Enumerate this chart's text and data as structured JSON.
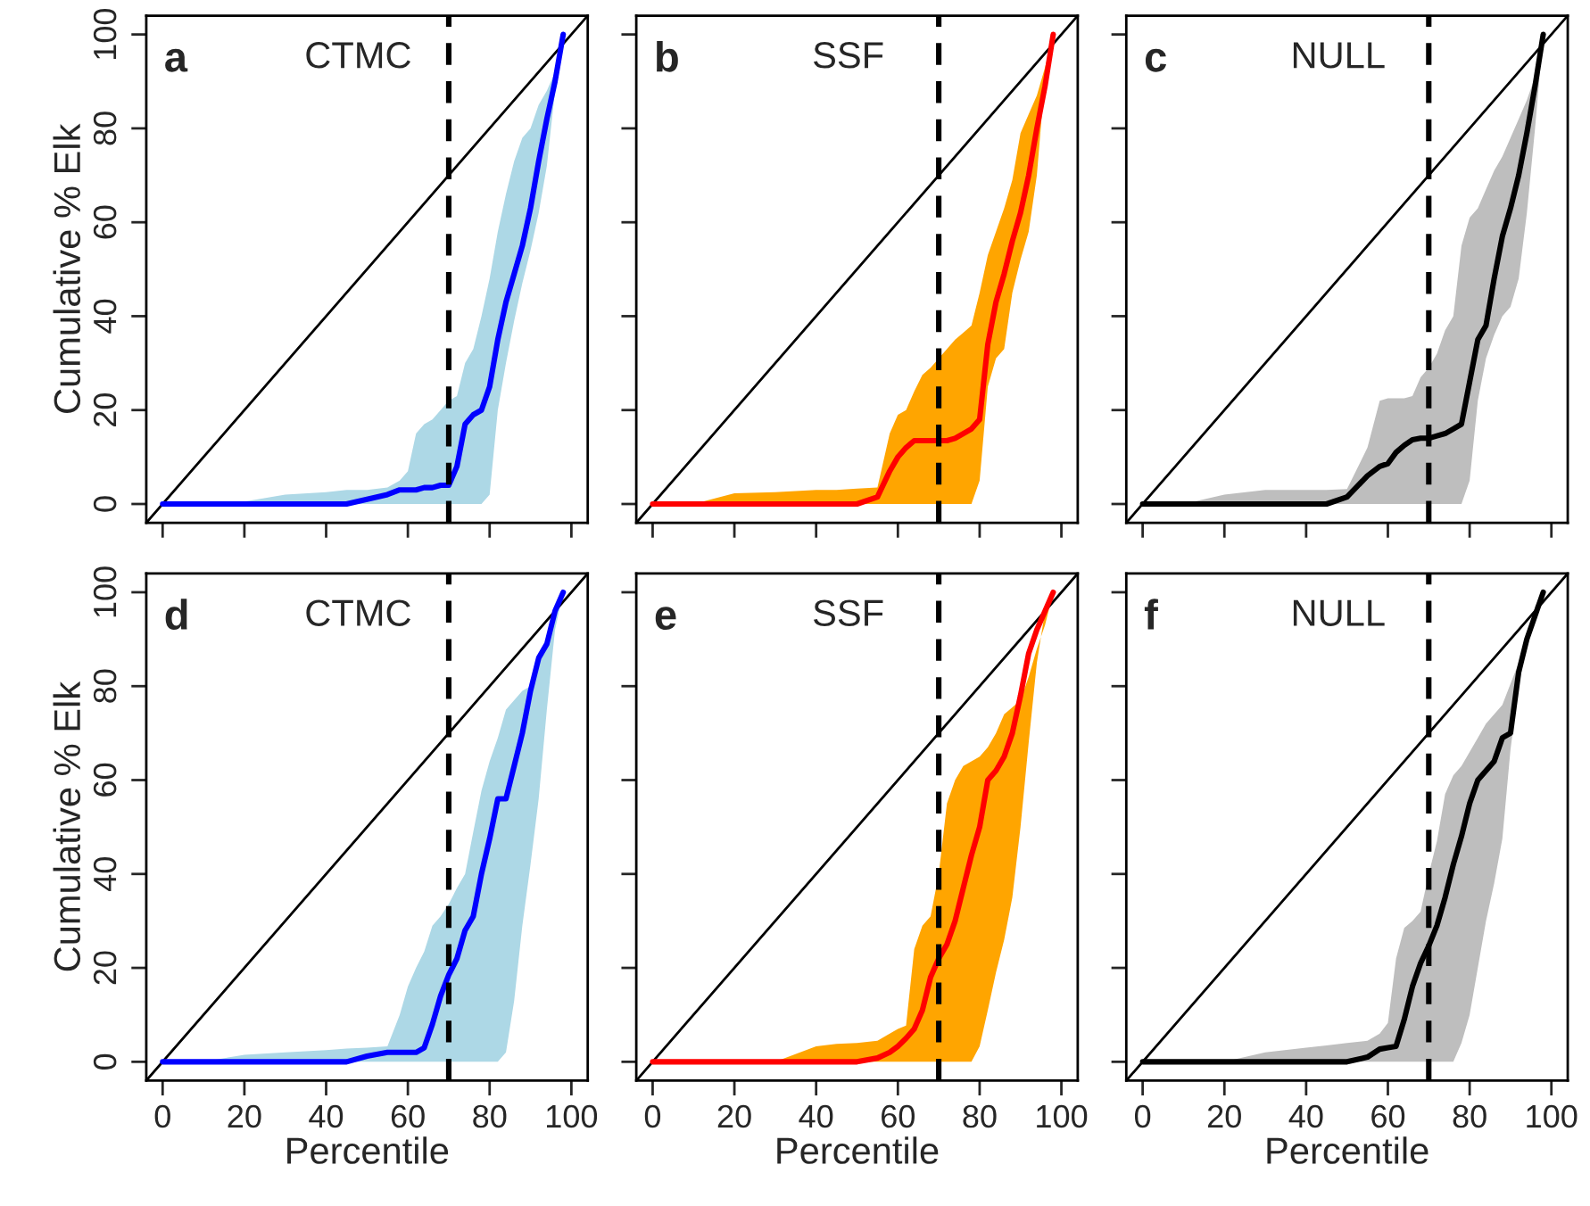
{
  "chart_data": [
    {
      "type": "line",
      "annotations": [
        "a",
        "CTMC"
      ],
      "ylabel": "Cumulative % Elk",
      "tick_labels": "y",
      "xlim": [
        -4,
        104
      ],
      "ylim": [
        -4,
        104
      ],
      "xticks": [
        0,
        20,
        40,
        60,
        80,
        100
      ],
      "yticks": [
        0,
        20,
        40,
        60,
        80,
        100
      ],
      "grid": false,
      "legend": false,
      "ref_lines": [
        {
          "axis": "x",
          "value": 70,
          "color": "#000000",
          "line_style": "dashed"
        }
      ],
      "series": [
        {
          "color": "#000000",
          "x": [
            -4,
            104
          ],
          "values": [
            -4,
            104
          ]
        },
        {
          "color": "#0000ff",
          "x": [
            0,
            10,
            20,
            30,
            40,
            45,
            50,
            55,
            58,
            60,
            62,
            64,
            66,
            68,
            70,
            72,
            74,
            76,
            78,
            80,
            82,
            84,
            86,
            88,
            90,
            92,
            94,
            96,
            98
          ],
          "values": [
            0,
            0,
            0,
            0,
            0,
            0,
            1,
            2,
            3,
            3,
            3,
            3.5,
            3.5,
            4,
            4,
            8,
            17,
            19,
            20,
            25,
            35,
            43,
            49,
            55,
            63,
            73,
            82,
            90,
            100
          ],
          "lower": [
            0,
            0,
            0,
            0,
            0,
            0,
            0,
            0,
            0,
            0,
            0,
            0,
            0,
            0,
            0,
            0,
            0,
            0,
            0,
            2,
            20,
            30,
            39,
            47,
            54,
            62,
            72,
            88,
            100
          ],
          "upper": [
            0,
            0,
            0.5,
            2,
            2.5,
            3,
            3,
            3.5,
            5,
            7,
            15,
            17,
            18,
            20,
            22,
            23,
            30,
            33,
            40,
            48,
            58,
            66,
            73,
            78,
            80,
            85,
            88,
            92,
            100
          ]
        }
      ]
    },
    {
      "type": "line",
      "annotations": [
        "b",
        "SSF"
      ],
      "tick_labels": false,
      "xlim": [
        -4,
        104
      ],
      "ylim": [
        -4,
        104
      ],
      "xticks": [
        0,
        20,
        40,
        60,
        80,
        100
      ],
      "yticks": [
        0,
        20,
        40,
        60,
        80,
        100
      ],
      "grid": false,
      "legend": false,
      "ref_lines": [
        {
          "axis": "x",
          "value": 70,
          "color": "#000000",
          "line_style": "dashed"
        }
      ],
      "series": [
        {
          "color": "#000000",
          "x": [
            -4,
            104
          ],
          "values": [
            -4,
            104
          ]
        },
        {
          "color": "#ff0000",
          "x": [
            0,
            10,
            20,
            30,
            40,
            45,
            50,
            55,
            58,
            60,
            62,
            64,
            66,
            68,
            70,
            72,
            74,
            76,
            78,
            80,
            82,
            84,
            86,
            88,
            90,
            92,
            94,
            96,
            98
          ],
          "values": [
            0,
            0,
            0,
            0,
            0,
            0,
            0,
            1.5,
            7,
            10,
            12,
            13.5,
            13.5,
            13.5,
            13.5,
            13.5,
            14,
            15,
            16,
            18,
            34,
            43,
            49,
            56,
            62,
            70,
            80,
            89,
            100
          ],
          "lower": [
            0,
            0,
            0,
            0,
            0,
            0,
            0,
            0,
            0,
            0,
            0,
            0,
            0,
            0,
            0,
            0,
            0,
            0,
            0,
            5,
            25,
            31,
            33,
            45,
            52,
            58,
            70,
            91,
            100
          ],
          "upper": [
            0,
            0,
            2.3,
            2.5,
            3,
            3,
            3.3,
            3.5,
            15,
            19,
            20,
            24,
            27.5,
            29,
            31,
            33,
            35,
            36.5,
            38,
            45,
            53,
            58,
            63,
            69,
            79,
            83,
            87,
            93,
            100
          ]
        }
      ]
    },
    {
      "type": "line",
      "annotations": [
        "c",
        "NULL"
      ],
      "tick_labels": false,
      "xlim": [
        -4,
        104
      ],
      "ylim": [
        -4,
        104
      ],
      "xticks": [
        0,
        20,
        40,
        60,
        80,
        100
      ],
      "yticks": [
        0,
        20,
        40,
        60,
        80,
        100
      ],
      "grid": false,
      "legend": false,
      "ref_lines": [
        {
          "axis": "x",
          "value": 70,
          "color": "#000000",
          "line_style": "dashed"
        }
      ],
      "series": [
        {
          "color": "#000000",
          "x": [
            -4,
            104
          ],
          "values": [
            -4,
            104
          ]
        },
        {
          "color": "#000000",
          "x": [
            0,
            10,
            20,
            30,
            40,
            45,
            50,
            55,
            58,
            60,
            62,
            64,
            66,
            68,
            70,
            72,
            74,
            76,
            78,
            80,
            82,
            84,
            86,
            88,
            90,
            92,
            94,
            96,
            98
          ],
          "values": [
            0,
            0,
            0,
            0,
            0,
            0,
            1.5,
            6,
            8,
            8.6,
            11,
            12.5,
            13.7,
            14,
            14,
            14.5,
            15,
            16,
            17,
            26,
            35,
            38,
            48,
            57,
            63,
            70,
            79,
            89,
            100
          ],
          "lower": [
            0,
            0,
            0,
            0,
            0,
            0,
            0,
            0,
            0,
            0,
            0,
            0,
            0,
            0,
            0,
            0,
            0,
            0,
            0,
            5,
            22,
            31,
            36,
            40,
            42,
            48,
            62,
            80,
            100
          ],
          "upper": [
            0,
            0,
            2,
            3,
            3,
            3,
            3.2,
            12,
            22,
            22.5,
            22.5,
            22.5,
            23,
            27,
            29,
            32,
            37,
            40,
            55,
            61,
            63,
            67,
            71,
            74,
            78,
            82,
            86,
            91,
            100
          ]
        }
      ]
    },
    {
      "type": "line",
      "annotations": [
        "d",
        "CTMC"
      ],
      "ylabel": "Cumulative % Elk",
      "xlabel": "Percentile",
      "xlim": [
        -4,
        104
      ],
      "ylim": [
        -4,
        104
      ],
      "xticks": [
        0,
        20,
        40,
        60,
        80,
        100
      ],
      "yticks": [
        0,
        20,
        40,
        60,
        80,
        100
      ],
      "grid": false,
      "legend": false,
      "ref_lines": [
        {
          "axis": "x",
          "value": 70,
          "color": "#000000",
          "line_style": "dashed"
        }
      ],
      "series": [
        {
          "color": "#000000",
          "x": [
            -4,
            104
          ],
          "values": [
            -4,
            104
          ]
        },
        {
          "color": "#0000ff",
          "x": [
            0,
            10,
            20,
            30,
            40,
            45,
            50,
            55,
            58,
            60,
            62,
            64,
            66,
            68,
            70,
            72,
            74,
            76,
            78,
            80,
            82,
            84,
            86,
            88,
            90,
            92,
            94,
            96,
            98
          ],
          "values": [
            0,
            0,
            0,
            0,
            0,
            0,
            1.2,
            2,
            2,
            2,
            2,
            3,
            8,
            14,
            18.5,
            22,
            28,
            31,
            40,
            47.5,
            56,
            56,
            63,
            70,
            79,
            86,
            89,
            96,
            100
          ],
          "lower": [
            0,
            0,
            0,
            0,
            0,
            0,
            0,
            0,
            0,
            0,
            0,
            0,
            0,
            0,
            0,
            0,
            0,
            0,
            0,
            0,
            0,
            2,
            13,
            29,
            42,
            56,
            75,
            92,
            100
          ],
          "upper": [
            0,
            0,
            1.5,
            2,
            2.5,
            2.8,
            3,
            3.3,
            10,
            16,
            20,
            23.5,
            29,
            31,
            33.6,
            37,
            40,
            49,
            57.7,
            64,
            69,
            75,
            77,
            79,
            80,
            86,
            89,
            95,
            100
          ]
        }
      ]
    },
    {
      "type": "line",
      "annotations": [
        "e",
        "SSF"
      ],
      "xlabel": "Percentile",
      "tick_labels": "x",
      "xlim": [
        -4,
        104
      ],
      "ylim": [
        -4,
        104
      ],
      "xticks": [
        0,
        20,
        40,
        60,
        80,
        100
      ],
      "yticks": [
        0,
        20,
        40,
        60,
        80,
        100
      ],
      "grid": false,
      "legend": false,
      "ref_lines": [
        {
          "axis": "x",
          "value": 70,
          "color": "#000000",
          "line_style": "dashed"
        }
      ],
      "series": [
        {
          "color": "#000000",
          "x": [
            -4,
            104
          ],
          "values": [
            -4,
            104
          ]
        },
        {
          "color": "#ff0000",
          "x": [
            0,
            10,
            20,
            30,
            40,
            45,
            50,
            55,
            58,
            60,
            62,
            64,
            66,
            68,
            70,
            72,
            74,
            76,
            78,
            80,
            82,
            84,
            86,
            88,
            90,
            92,
            94,
            96,
            98
          ],
          "values": [
            0,
            0,
            0,
            0,
            0,
            0,
            0,
            0.8,
            2,
            3.3,
            5,
            7,
            11,
            18,
            22,
            25,
            30,
            37,
            44,
            50,
            60,
            62,
            65,
            70,
            78,
            87,
            92,
            96,
            100
          ],
          "lower": [
            0,
            0,
            0,
            0,
            0,
            0,
            0,
            0,
            0,
            0,
            0,
            0,
            0,
            0,
            0,
            0,
            0,
            0,
            0,
            3.3,
            11,
            19,
            26,
            35,
            50,
            68,
            85,
            96,
            100
          ],
          "upper": [
            0,
            0,
            0,
            0,
            3.3,
            3.8,
            4,
            4.5,
            6,
            7,
            7.7,
            24,
            29,
            31,
            40,
            55,
            60,
            63,
            64,
            65,
            67,
            70,
            74,
            75.5,
            77,
            82,
            88,
            93,
            100
          ]
        }
      ]
    },
    {
      "type": "line",
      "annotations": [
        "f",
        "NULL"
      ],
      "xlabel": "Percentile",
      "tick_labels": "x",
      "xlim": [
        -4,
        104
      ],
      "ylim": [
        -4,
        104
      ],
      "xticks": [
        0,
        20,
        40,
        60,
        80,
        100
      ],
      "yticks": [
        0,
        20,
        40,
        60,
        80,
        100
      ],
      "grid": false,
      "legend": false,
      "ref_lines": [
        {
          "axis": "x",
          "value": 70,
          "color": "#000000",
          "line_style": "dashed"
        }
      ],
      "series": [
        {
          "color": "#000000",
          "x": [
            -4,
            104
          ],
          "values": [
            -4,
            104
          ]
        },
        {
          "color": "#000000",
          "x": [
            0,
            10,
            20,
            30,
            40,
            45,
            50,
            55,
            58,
            60,
            62,
            64,
            66,
            68,
            70,
            72,
            74,
            76,
            78,
            80,
            82,
            84,
            86,
            88,
            90,
            92,
            94,
            96,
            98
          ],
          "values": [
            0,
            0,
            0,
            0,
            0,
            0,
            0,
            1,
            2.7,
            3,
            3.3,
            9,
            16,
            21,
            24.7,
            29,
            35,
            42,
            48,
            55,
            60,
            62,
            64,
            69,
            70,
            83,
            90,
            95,
            100
          ],
          "lower": [
            0,
            0,
            0,
            0,
            0,
            0,
            0,
            0,
            0,
            0,
            0,
            0,
            0,
            0,
            0,
            0,
            0,
            0,
            4,
            10,
            20,
            30,
            38,
            47.5,
            66.5,
            80,
            89,
            97,
            100
          ],
          "upper": [
            0,
            0,
            0,
            2,
            3,
            3.5,
            4,
            4.5,
            6,
            8.3,
            22,
            28.5,
            30,
            32,
            40,
            47,
            57,
            61,
            63,
            66,
            69,
            72,
            74,
            76,
            80.5,
            85,
            89,
            96,
            100
          ]
        }
      ]
    }
  ]
}
